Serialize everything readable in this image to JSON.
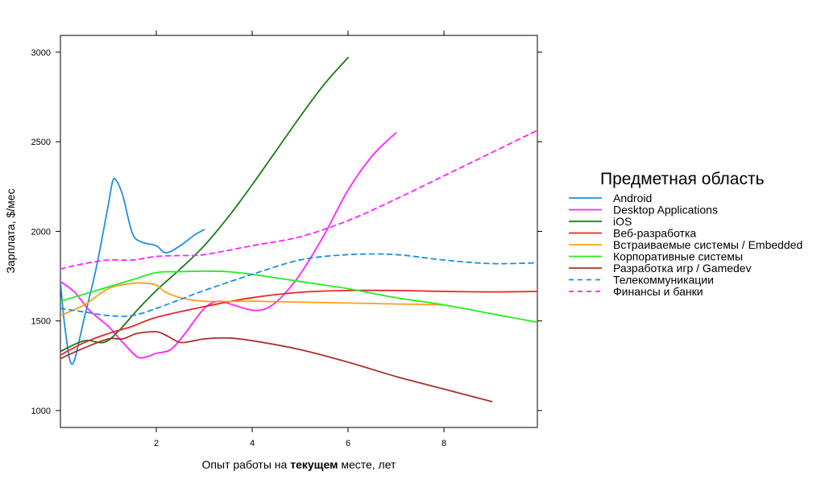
{
  "chart_data": {
    "type": "line",
    "xlabel_parts": [
      "Опыт работы на ",
      "текущем",
      " месте, лет"
    ],
    "ylabel": "Зарплата, $/мес",
    "xlim": [
      0,
      10
    ],
    "ylim": [
      900,
      3100
    ],
    "x_ticks": [
      2,
      4,
      6,
      8
    ],
    "y_ticks": [
      1000,
      1500,
      2000,
      2500,
      3000
    ],
    "grid": false,
    "legend_position": "right",
    "legend_title": "Предметная область",
    "series": [
      {
        "name": "Android",
        "color": "#1f8fdc",
        "dash": false,
        "x": [
          0,
          0.1,
          0.25,
          0.5,
          0.75,
          1.0,
          1.08,
          1.15,
          1.3,
          1.5,
          1.7,
          2.0,
          2.2,
          2.5,
          2.8,
          3.0
        ],
        "y": [
          1720,
          1450,
          1260,
          1520,
          1800,
          2150,
          2270,
          2290,
          2200,
          1990,
          1940,
          1920,
          1880,
          1920,
          1980,
          2010
        ]
      },
      {
        "name": "Desktop Applications",
        "color": "#ff22ff",
        "dash": false,
        "x": [
          0,
          0.3,
          0.6,
          1.0,
          1.3,
          1.6,
          1.8,
          2.0,
          2.3,
          2.6,
          3.0,
          3.3,
          3.6,
          4.0,
          4.3,
          4.6,
          5.0,
          5.5,
          6.0,
          6.5,
          7.0
        ],
        "y": [
          1720,
          1660,
          1560,
          1470,
          1380,
          1300,
          1300,
          1320,
          1340,
          1430,
          1570,
          1610,
          1590,
          1560,
          1570,
          1630,
          1760,
          1980,
          2230,
          2420,
          2550
        ]
      },
      {
        "name": "iOS",
        "color": "#187c18",
        "dash": false,
        "x": [
          0,
          0.5,
          0.9,
          1.2,
          1.6,
          2.0,
          2.5,
          3.0,
          3.5,
          4.0,
          4.5,
          5.0,
          5.5,
          6.0
        ],
        "y": [
          1330,
          1390,
          1380,
          1440,
          1560,
          1670,
          1790,
          1920,
          2080,
          2260,
          2450,
          2640,
          2820,
          2970
        ]
      },
      {
        "name": "Веб-разработка",
        "color": "#e8262a",
        "dash": false,
        "x": [
          0,
          0.5,
          1.0,
          1.5,
          2.0,
          3.0,
          4.0,
          5.0,
          6.0,
          7.0,
          8.0,
          9.0,
          10.0
        ],
        "y": [
          1310,
          1380,
          1430,
          1470,
          1520,
          1580,
          1630,
          1660,
          1670,
          1670,
          1665,
          1662,
          1665
        ]
      },
      {
        "name": "Встраиваемые системы / Embedded",
        "color": "#ff9f1a",
        "dash": false,
        "x": [
          0,
          0.5,
          1.0,
          1.5,
          1.8,
          2.0,
          2.2,
          2.5,
          3.0,
          4.0,
          5.0,
          6.0,
          7.0,
          8.0
        ],
        "y": [
          1530,
          1590,
          1680,
          1710,
          1710,
          1700,
          1660,
          1630,
          1610,
          1610,
          1605,
          1600,
          1595,
          1590
        ]
      },
      {
        "name": "Корпоративные системы",
        "color": "#22ee22",
        "dash": false,
        "x": [
          0,
          0.5,
          1.0,
          1.5,
          2.0,
          2.5,
          3.0,
          3.5,
          4.0,
          5.0,
          6.0,
          7.0,
          8.0,
          9.0,
          10.0
        ],
        "y": [
          1610,
          1650,
          1690,
          1730,
          1770,
          1775,
          1778,
          1775,
          1760,
          1720,
          1680,
          1630,
          1590,
          1540,
          1490
        ]
      },
      {
        "name": "Разработка игр / Gamedev",
        "color": "#a8342a",
        "dash": false,
        "x": [
          0,
          0.5,
          1.0,
          1.3,
          1.6,
          2.0,
          2.2,
          2.5,
          2.8,
          3.0,
          3.5,
          4.0,
          5.0,
          6.0,
          7.0,
          8.0,
          9.0
        ],
        "y": [
          1290,
          1350,
          1400,
          1400,
          1430,
          1440,
          1420,
          1380,
          1390,
          1400,
          1405,
          1390,
          1340,
          1270,
          1190,
          1120,
          1050
        ]
      },
      {
        "name": "Телекоммуникации",
        "color": "#1f8fdc",
        "dash": true,
        "x": [
          0,
          0.5,
          1.0,
          1.5,
          2.0,
          2.5,
          3.0,
          4.0,
          5.0,
          6.0,
          7.0,
          8.0,
          9.0,
          10.0
        ],
        "y": [
          1570,
          1550,
          1530,
          1530,
          1570,
          1620,
          1670,
          1760,
          1840,
          1870,
          1870,
          1840,
          1820,
          1825
        ]
      },
      {
        "name": "Финансы и банки",
        "color": "#ff22ff",
        "dash": true,
        "x": [
          0,
          0.5,
          1.0,
          1.5,
          2.0,
          2.5,
          3.0,
          4.0,
          5.0,
          6.0,
          7.0,
          8.0,
          9.0,
          10.0
        ],
        "y": [
          1790,
          1820,
          1840,
          1840,
          1860,
          1865,
          1870,
          1920,
          1970,
          2060,
          2180,
          2310,
          2440,
          2570
        ]
      }
    ]
  }
}
